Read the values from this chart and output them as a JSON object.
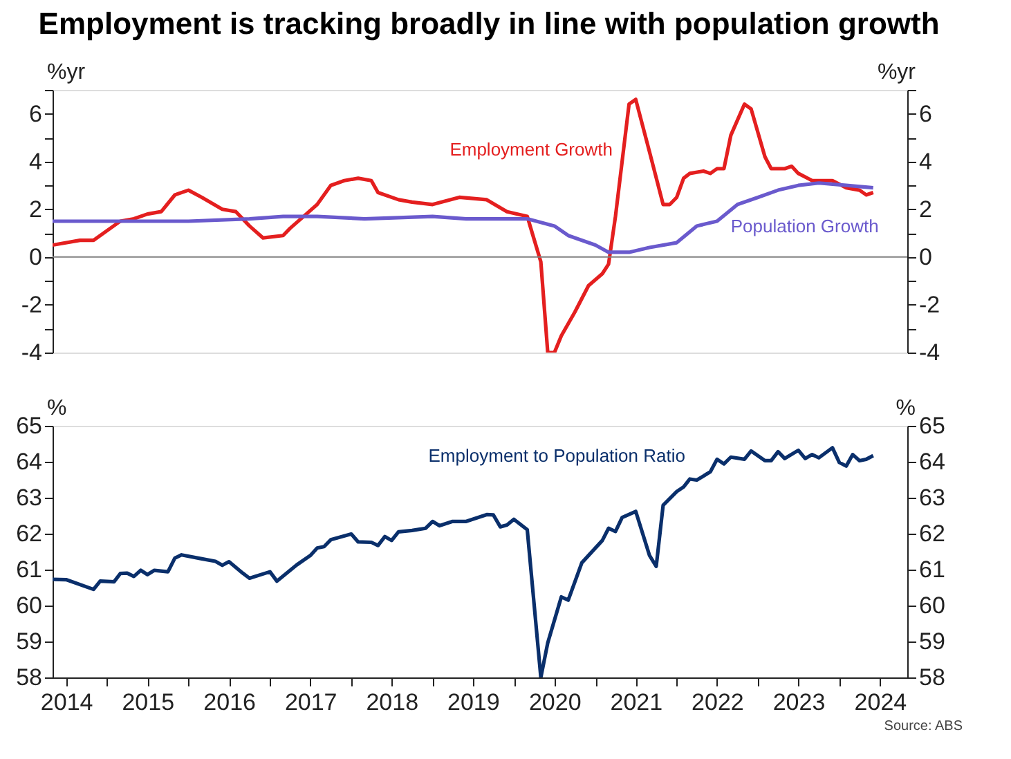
{
  "chart_data": [
    {
      "type": "line",
      "title": "Employment is tracking broadly in line with population growth",
      "ylabel": "%yr",
      "y2label": "%yr",
      "xlim": [
        "2014-05-01",
        "2024-11-01"
      ],
      "ylim": [
        -4,
        7
      ],
      "y2lim": [
        -4,
        7
      ],
      "yticks": [
        -4,
        {
          "value": -3,
          "label": null
        },
        -2,
        {
          "value": -1,
          "label": null
        },
        0,
        {
          "value": 1,
          "label": null
        },
        2,
        {
          "value": 3,
          "label": null
        },
        4,
        {
          "value": 5,
          "label": null
        },
        6,
        {
          "value": 7,
          "label": null
        }
      ],
      "y2ticks": [
        -4,
        {
          "value": -3,
          "label": null
        },
        -2,
        {
          "value": -1,
          "label": null
        },
        0,
        {
          "value": 1,
          "label": null
        },
        2,
        {
          "value": 3,
          "label": null
        },
        4,
        {
          "value": 5,
          "label": null
        },
        6,
        {
          "value": 7,
          "label": null
        }
      ],
      "tick_labels": "y",
      "grid": false,
      "line_style": "solid",
      "marker": "none",
      "ref_lines": [
        {
          "axis": "y",
          "value": 0,
          "color": "#808080"
        }
      ],
      "series": [
        {
          "name": "Employment Growth",
          "color": "#e41f1f",
          "x": [
            "2014-05-01",
            "2014-09-01",
            "2014-11-01",
            "2015-03-01",
            "2015-05-01",
            "2015-07-01",
            "2015-09-01",
            "2015-11-01",
            "2016-01-01",
            "2016-03-01",
            "2016-06-01",
            "2016-08-01",
            "2016-10-01",
            "2016-12-01",
            "2017-03-01",
            "2017-04-01",
            "2017-06-01",
            "2017-08-01",
            "2017-10-01",
            "2017-12-01",
            "2018-02-01",
            "2018-04-01",
            "2018-05-01",
            "2018-08-01",
            "2018-10-01",
            "2019-01-01",
            "2019-05-01",
            "2019-09-01",
            "2019-12-01",
            "2020-03-01",
            "2020-05-01",
            "2020-06-01",
            "2020-07-01",
            "2020-08-01",
            "2020-10-01",
            "2020-12-01",
            "2021-02-01",
            "2021-03-01",
            "2021-04-01",
            "2021-06-01",
            "2021-07-01",
            "2021-09-01",
            "2021-11-01",
            "2021-12-01",
            "2022-01-01",
            "2022-02-01",
            "2022-03-01",
            "2022-05-01",
            "2022-06-01",
            "2022-07-01",
            "2022-08-01",
            "2022-09-01",
            "2022-11-01",
            "2022-12-01",
            "2023-02-01",
            "2023-03-01",
            "2023-05-01",
            "2023-06-01",
            "2023-07-01",
            "2023-09-01",
            "2023-12-01",
            "2024-02-01",
            "2024-04-01",
            "2024-05-01",
            "2024-06-01"
          ],
          "values": [
            0.5,
            0.7,
            0.7,
            1.5,
            1.6,
            1.8,
            1.9,
            2.6,
            2.8,
            2.5,
            2.0,
            1.9,
            1.3,
            0.8,
            0.9,
            1.2,
            1.7,
            2.2,
            3.0,
            3.2,
            3.3,
            3.2,
            2.7,
            2.4,
            2.3,
            2.2,
            2.5,
            2.4,
            1.9,
            1.7,
            -0.2,
            -4.0,
            -4.0,
            -3.3,
            -2.3,
            -1.2,
            -0.7,
            -0.3,
            1.7,
            6.4,
            6.6,
            4.4,
            2.2,
            2.2,
            2.5,
            3.3,
            3.5,
            3.6,
            3.5,
            3.7,
            3.7,
            5.1,
            6.4,
            6.2,
            4.2,
            3.7,
            3.7,
            3.8,
            3.5,
            3.2,
            3.2,
            2.9,
            2.8,
            2.6,
            2.7
          ]
        },
        {
          "name": "Population Growth",
          "color": "#6a5acd",
          "x": [
            "2014-05-01",
            "2015-01-01",
            "2016-01-01",
            "2016-10-01",
            "2017-03-01",
            "2017-08-01",
            "2018-03-01",
            "2019-01-01",
            "2019-06-01",
            "2020-03-01",
            "2020-07-01",
            "2020-09-01",
            "2021-01-01",
            "2021-03-01",
            "2021-06-01",
            "2021-09-01",
            "2022-01-01",
            "2022-04-01",
            "2022-07-01",
            "2022-10-01",
            "2023-01-01",
            "2023-04-01",
            "2023-07-01",
            "2023-10-01",
            "2024-02-01",
            "2024-06-01"
          ],
          "values": [
            1.5,
            1.5,
            1.5,
            1.6,
            1.7,
            1.7,
            1.6,
            1.7,
            1.6,
            1.6,
            1.3,
            0.9,
            0.5,
            0.2,
            0.2,
            0.4,
            0.6,
            1.3,
            1.5,
            2.2,
            2.5,
            2.8,
            3.0,
            3.1,
            3.0,
            2.9
          ]
        }
      ]
    },
    {
      "type": "line",
      "ylabel": "%",
      "y2label": "%",
      "xlim": [
        "2014-05-01",
        "2024-11-01"
      ],
      "ylim": [
        58,
        65
      ],
      "y2lim": [
        58,
        65
      ],
      "yticks": [
        58,
        59,
        60,
        61,
        62,
        63,
        64,
        65
      ],
      "y2ticks": [
        58,
        59,
        60,
        61,
        62,
        63,
        64,
        65
      ],
      "xticks": [
        {
          "value": "2014-07-01",
          "label": "2014"
        },
        {
          "value": "2015-01-01",
          "label": null
        },
        {
          "value": "2015-07-01",
          "label": "2015"
        },
        {
          "value": "2016-01-01",
          "label": null
        },
        {
          "value": "2016-07-01",
          "label": "2016"
        },
        {
          "value": "2017-01-01",
          "label": null
        },
        {
          "value": "2017-07-01",
          "label": "2017"
        },
        {
          "value": "2018-01-01",
          "label": null
        },
        {
          "value": "2018-07-01",
          "label": "2018"
        },
        {
          "value": "2019-01-01",
          "label": null
        },
        {
          "value": "2019-07-01",
          "label": "2019"
        },
        {
          "value": "2020-01-01",
          "label": null
        },
        {
          "value": "2020-07-01",
          "label": "2020"
        },
        {
          "value": "2021-01-01",
          "label": null
        },
        {
          "value": "2021-07-01",
          "label": "2021"
        },
        {
          "value": "2022-01-01",
          "label": null
        },
        {
          "value": "2022-07-01",
          "label": "2022"
        },
        {
          "value": "2023-01-01",
          "label": null
        },
        {
          "value": "2023-07-01",
          "label": "2023"
        },
        {
          "value": "2024-01-01",
          "label": null
        },
        {
          "value": "2024-07-01",
          "label": "2024"
        }
      ],
      "grid": false,
      "line_style": "solid",
      "marker": "none",
      "annotations": [
        "Source: ABS"
      ],
      "series": [
        {
          "name": "Employment to Population Ratio",
          "color": "#0a2f6b",
          "x": [
            "2014-05-01",
            "2014-07-01",
            "2014-11-01",
            "2014-12-01",
            "2015-02-01",
            "2015-03-01",
            "2015-04-01",
            "2015-05-01",
            "2015-06-01",
            "2015-07-01",
            "2015-08-01",
            "2015-10-01",
            "2015-11-01",
            "2015-12-01",
            "2016-03-01",
            "2016-05-01",
            "2016-06-01",
            "2016-07-01",
            "2016-09-01",
            "2016-10-01",
            "2017-01-01",
            "2017-02-01",
            "2017-05-01",
            "2017-07-01",
            "2017-08-01",
            "2017-09-01",
            "2017-10-01",
            "2018-01-01",
            "2018-02-01",
            "2018-04-01",
            "2018-05-01",
            "2018-06-01",
            "2018-07-01",
            "2018-08-01",
            "2018-10-01",
            "2018-12-01",
            "2019-01-01",
            "2019-02-01",
            "2019-04-01",
            "2019-06-01",
            "2019-09-01",
            "2019-10-01",
            "2019-11-01",
            "2019-12-01",
            "2020-01-01",
            "2020-03-01",
            "2020-05-01",
            "2020-06-01",
            "2020-08-01",
            "2020-09-01",
            "2020-11-01",
            "2021-02-01",
            "2021-03-01",
            "2021-04-01",
            "2021-05-01",
            "2021-07-01",
            "2021-09-01",
            "2021-10-01",
            "2021-11-01",
            "2022-01-01",
            "2022-02-01",
            "2022-03-01",
            "2022-04-01",
            "2022-06-01",
            "2022-07-01",
            "2022-08-01",
            "2022-09-01",
            "2022-11-01",
            "2022-12-01",
            "2023-02-01",
            "2023-03-01",
            "2023-04-01",
            "2023-05-01",
            "2023-07-01",
            "2023-08-01",
            "2023-09-01",
            "2023-10-01",
            "2023-12-01",
            "2024-01-01",
            "2024-02-01",
            "2024-03-01",
            "2024-04-01",
            "2024-05-01",
            "2024-06-01"
          ],
          "values": [
            60.73,
            60.72,
            60.45,
            60.68,
            60.66,
            60.89,
            60.9,
            60.81,
            60.98,
            60.86,
            60.98,
            60.94,
            61.32,
            61.41,
            61.3,
            61.23,
            61.12,
            61.22,
            60.9,
            60.76,
            60.94,
            60.68,
            61.13,
            61.39,
            61.6,
            61.64,
            61.83,
            61.99,
            61.77,
            61.76,
            61.67,
            61.92,
            61.81,
            62.05,
            62.09,
            62.15,
            62.34,
            62.22,
            62.34,
            62.34,
            62.53,
            62.52,
            62.19,
            62.24,
            62.4,
            62.11,
            58.0,
            58.96,
            60.24,
            60.15,
            61.19,
            61.81,
            62.15,
            62.06,
            62.45,
            62.62,
            61.39,
            61.09,
            62.79,
            63.17,
            63.3,
            63.52,
            63.49,
            63.72,
            64.07,
            63.94,
            64.13,
            64.07,
            64.3,
            64.03,
            64.03,
            64.28,
            64.09,
            64.32,
            64.09,
            64.2,
            64.11,
            64.39,
            63.98,
            63.88,
            64.2,
            64.03,
            64.07,
            64.17
          ]
        }
      ]
    }
  ]
}
